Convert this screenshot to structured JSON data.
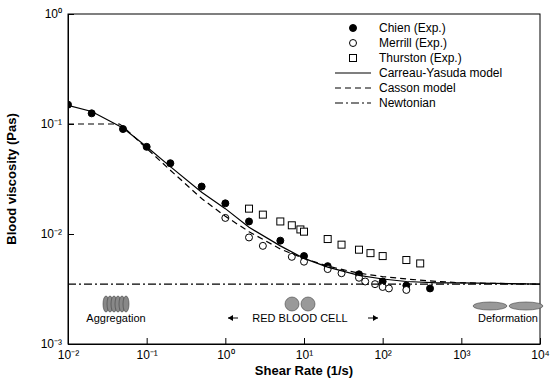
{
  "chart_data": {
    "type": "scatter",
    "x_label": "Shear Rate (1/s)",
    "y_label": "Blood viscosity (Pas)",
    "log": true,
    "legend": "upper right",
    "xlim": [
      0.01,
      10000
    ],
    "ylim": [
      0.001,
      1
    ],
    "xticks": [
      {
        "value": 0.01,
        "label": "10⁻²"
      },
      {
        "value": 0.1,
        "label": "10⁻¹"
      },
      {
        "value": 1,
        "label": "10⁰"
      },
      {
        "value": 10,
        "label": "10¹"
      },
      {
        "value": 100,
        "label": "10²"
      },
      {
        "value": 1000,
        "label": "10³"
      },
      {
        "value": 10000,
        "label": "10⁴"
      }
    ],
    "yticks": [
      {
        "value": 0.001,
        "label": "10⁻³"
      },
      {
        "value": 0.01,
        "label": "10⁻²"
      },
      {
        "value": 0.1,
        "label": "10⁻¹"
      },
      {
        "value": 1,
        "label": "10⁰"
      }
    ],
    "annotations": [
      "Aggregation",
      "RED BLOOD CELL",
      "Deformation"
    ],
    "series": [
      {
        "name": "Chien (Exp.)",
        "type": "scatter",
        "marker": "circle",
        "color": "#000000",
        "x": [
          0.01,
          0.02,
          0.05,
          0.1,
          0.2,
          0.5,
          1,
          2,
          5,
          10,
          20,
          50,
          100,
          200,
          400
        ],
        "values": [
          0.15,
          0.125,
          0.09,
          0.062,
          0.044,
          0.027,
          0.019,
          0.013,
          0.0087,
          0.0063,
          0.0051,
          0.0043,
          0.0037,
          0.0034,
          0.0032
        ]
      },
      {
        "name": "Merrill (Exp.)",
        "type": "scatter",
        "marker": "circle-open",
        "color": "#000000",
        "x": [
          1,
          2,
          3,
          7,
          10,
          20,
          30,
          50,
          60,
          80,
          100,
          120,
          200
        ],
        "values": [
          0.014,
          0.0093,
          0.0078,
          0.0062,
          0.0056,
          0.0048,
          0.0044,
          0.004,
          0.0037,
          0.0035,
          0.0033,
          0.0032,
          0.0031
        ]
      },
      {
        "name": "Thurston (Exp.)",
        "type": "scatter",
        "marker": "square-open",
        "color": "#000000",
        "x": [
          2,
          3,
          5,
          7,
          9,
          10,
          20,
          30,
          50,
          70,
          100,
          200,
          300
        ],
        "values": [
          0.017,
          0.015,
          0.013,
          0.012,
          0.011,
          0.0105,
          0.009,
          0.008,
          0.0072,
          0.0067,
          0.0063,
          0.0058,
          0.0054
        ]
      },
      {
        "name": "Carreau-Yasuda model",
        "type": "line",
        "line_style": "solid",
        "color": "#000000",
        "x": [
          0.01,
          0.02,
          0.05,
          0.1,
          0.2,
          0.5,
          1,
          2,
          5,
          10,
          20,
          50,
          100,
          200,
          500,
          1000,
          10000
        ],
        "values": [
          0.148,
          0.13,
          0.092,
          0.062,
          0.041,
          0.024,
          0.017,
          0.0115,
          0.0078,
          0.006,
          0.005,
          0.0042,
          0.0039,
          0.0037,
          0.0036,
          0.0036,
          0.0035
        ]
      },
      {
        "name": "Casson model",
        "type": "line",
        "line_style": "dashed",
        "color": "#000000",
        "x": [
          0.01,
          0.045,
          0.05,
          0.1,
          0.2,
          0.5,
          1,
          2,
          5,
          10,
          20,
          50,
          100,
          200,
          500,
          1000,
          10000
        ],
        "values": [
          0.1,
          0.1,
          0.095,
          0.06,
          0.038,
          0.021,
          0.0145,
          0.0105,
          0.0073,
          0.006,
          0.0051,
          0.0044,
          0.0041,
          0.0039,
          0.0037,
          0.0036,
          0.0035
        ]
      },
      {
        "name": "Newtonian",
        "type": "line",
        "line_style": "dashdot",
        "color": "#000000",
        "x": [
          0.01,
          10000
        ],
        "values": [
          0.0035,
          0.0035
        ]
      }
    ]
  }
}
